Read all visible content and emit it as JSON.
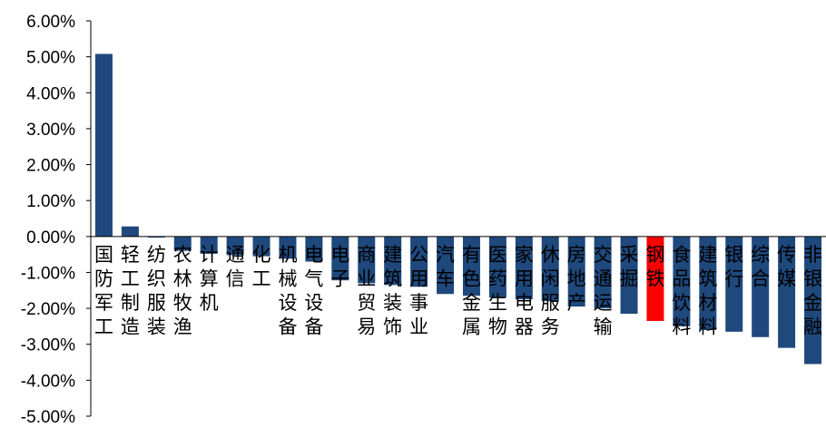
{
  "chart_data": {
    "type": "bar",
    "title": "",
    "xlabel": "",
    "ylabel": "",
    "ylim": [
      -5.0,
      6.0
    ],
    "y_tick_labels": [
      "6.00%",
      "5.00%",
      "4.00%",
      "3.00%",
      "2.00%",
      "1.00%",
      "0.00%",
      "-1.00%",
      "-2.00%",
      "-3.00%",
      "-4.00%",
      "-5.00%"
    ],
    "grid": false,
    "legend": "none",
    "categories": [
      "国防军工",
      "轻工制造",
      "纺织服装",
      "农林牧渔",
      "计算机",
      "通信",
      "化工",
      "机械设备",
      "电气设备",
      "电子",
      "商业贸易",
      "建筑装饰",
      "公用事业",
      "汽车",
      "有色金属",
      "医药生物",
      "家用电器",
      "休闲服务",
      "房地产",
      "交通运输",
      "采掘",
      "钢铁",
      "食品饮料",
      "建筑材料",
      "银行",
      "综合",
      "传媒",
      "非银金融"
    ],
    "values": [
      5.08,
      0.28,
      -0.03,
      -0.4,
      -0.48,
      -0.52,
      -0.55,
      -0.62,
      -0.7,
      -1.22,
      -1.3,
      -1.35,
      -1.4,
      -1.6,
      -1.65,
      -1.7,
      -1.75,
      -1.8,
      -1.95,
      -2.0,
      -2.15,
      -2.35,
      -2.5,
      -2.6,
      -2.65,
      -2.8,
      -3.1,
      -3.55
    ],
    "highlight": "钢铁",
    "colors": {
      "bar": "#1F497D",
      "highlight": "#FF0000",
      "axis": "#000000"
    }
  }
}
